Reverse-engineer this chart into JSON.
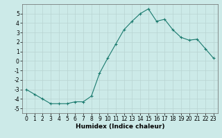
{
  "x": [
    0,
    1,
    2,
    3,
    4,
    5,
    6,
    7,
    8,
    9,
    10,
    11,
    12,
    13,
    14,
    15,
    16,
    17,
    18,
    19,
    20,
    21,
    22,
    23
  ],
  "y": [
    -3.0,
    -3.5,
    -4.0,
    -4.5,
    -4.5,
    -4.5,
    -4.3,
    -4.3,
    -3.7,
    -1.3,
    0.3,
    1.8,
    3.3,
    4.2,
    5.0,
    5.5,
    4.2,
    4.4,
    3.3,
    2.5,
    2.2,
    2.3,
    1.3,
    0.3
  ],
  "title": "",
  "xlabel": "Humidex (Indice chaleur)",
  "ylabel": "",
  "xlim": [
    -0.5,
    23.5
  ],
  "ylim": [
    -5.5,
    6.0
  ],
  "yticks": [
    -5,
    -4,
    -3,
    -2,
    -1,
    0,
    1,
    2,
    3,
    4,
    5
  ],
  "xticks": [
    0,
    1,
    2,
    3,
    4,
    5,
    6,
    7,
    8,
    9,
    10,
    11,
    12,
    13,
    14,
    15,
    16,
    17,
    18,
    19,
    20,
    21,
    22,
    23
  ],
  "line_color": "#1a7a6e",
  "marker": "+",
  "marker_size": 3,
  "bg_color": "#cceae8",
  "grid_color": "#b8d4d2",
  "tick_label_fontsize": 5.5,
  "xlabel_fontsize": 6.5
}
